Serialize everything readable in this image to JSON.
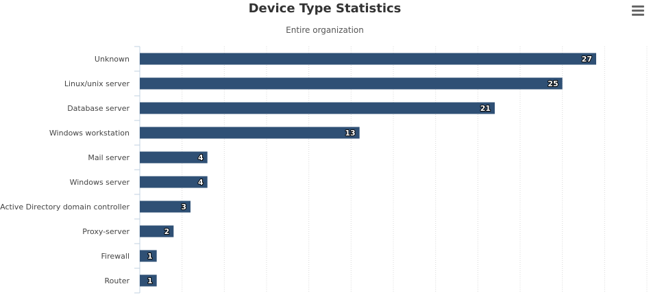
{
  "chart_data": {
    "type": "bar",
    "orientation": "horizontal",
    "title": "Device Type Statistics",
    "subtitle": "Entire organization",
    "categories": [
      "Unknown",
      "Linux/unix server",
      "Database server",
      "Windows workstation",
      "Mail server",
      "Windows server",
      "Active Directory domain controller",
      "Proxy-server",
      "Firewall",
      "Router"
    ],
    "values": [
      27,
      25,
      21,
      13,
      4,
      4,
      3,
      2,
      1,
      1
    ],
    "xlim": [
      0,
      30
    ],
    "grid": true,
    "data_labels": true,
    "legend": "none",
    "bar_color": "#2f5075"
  },
  "menu": {
    "icon": "hamburger-menu-icon"
  }
}
